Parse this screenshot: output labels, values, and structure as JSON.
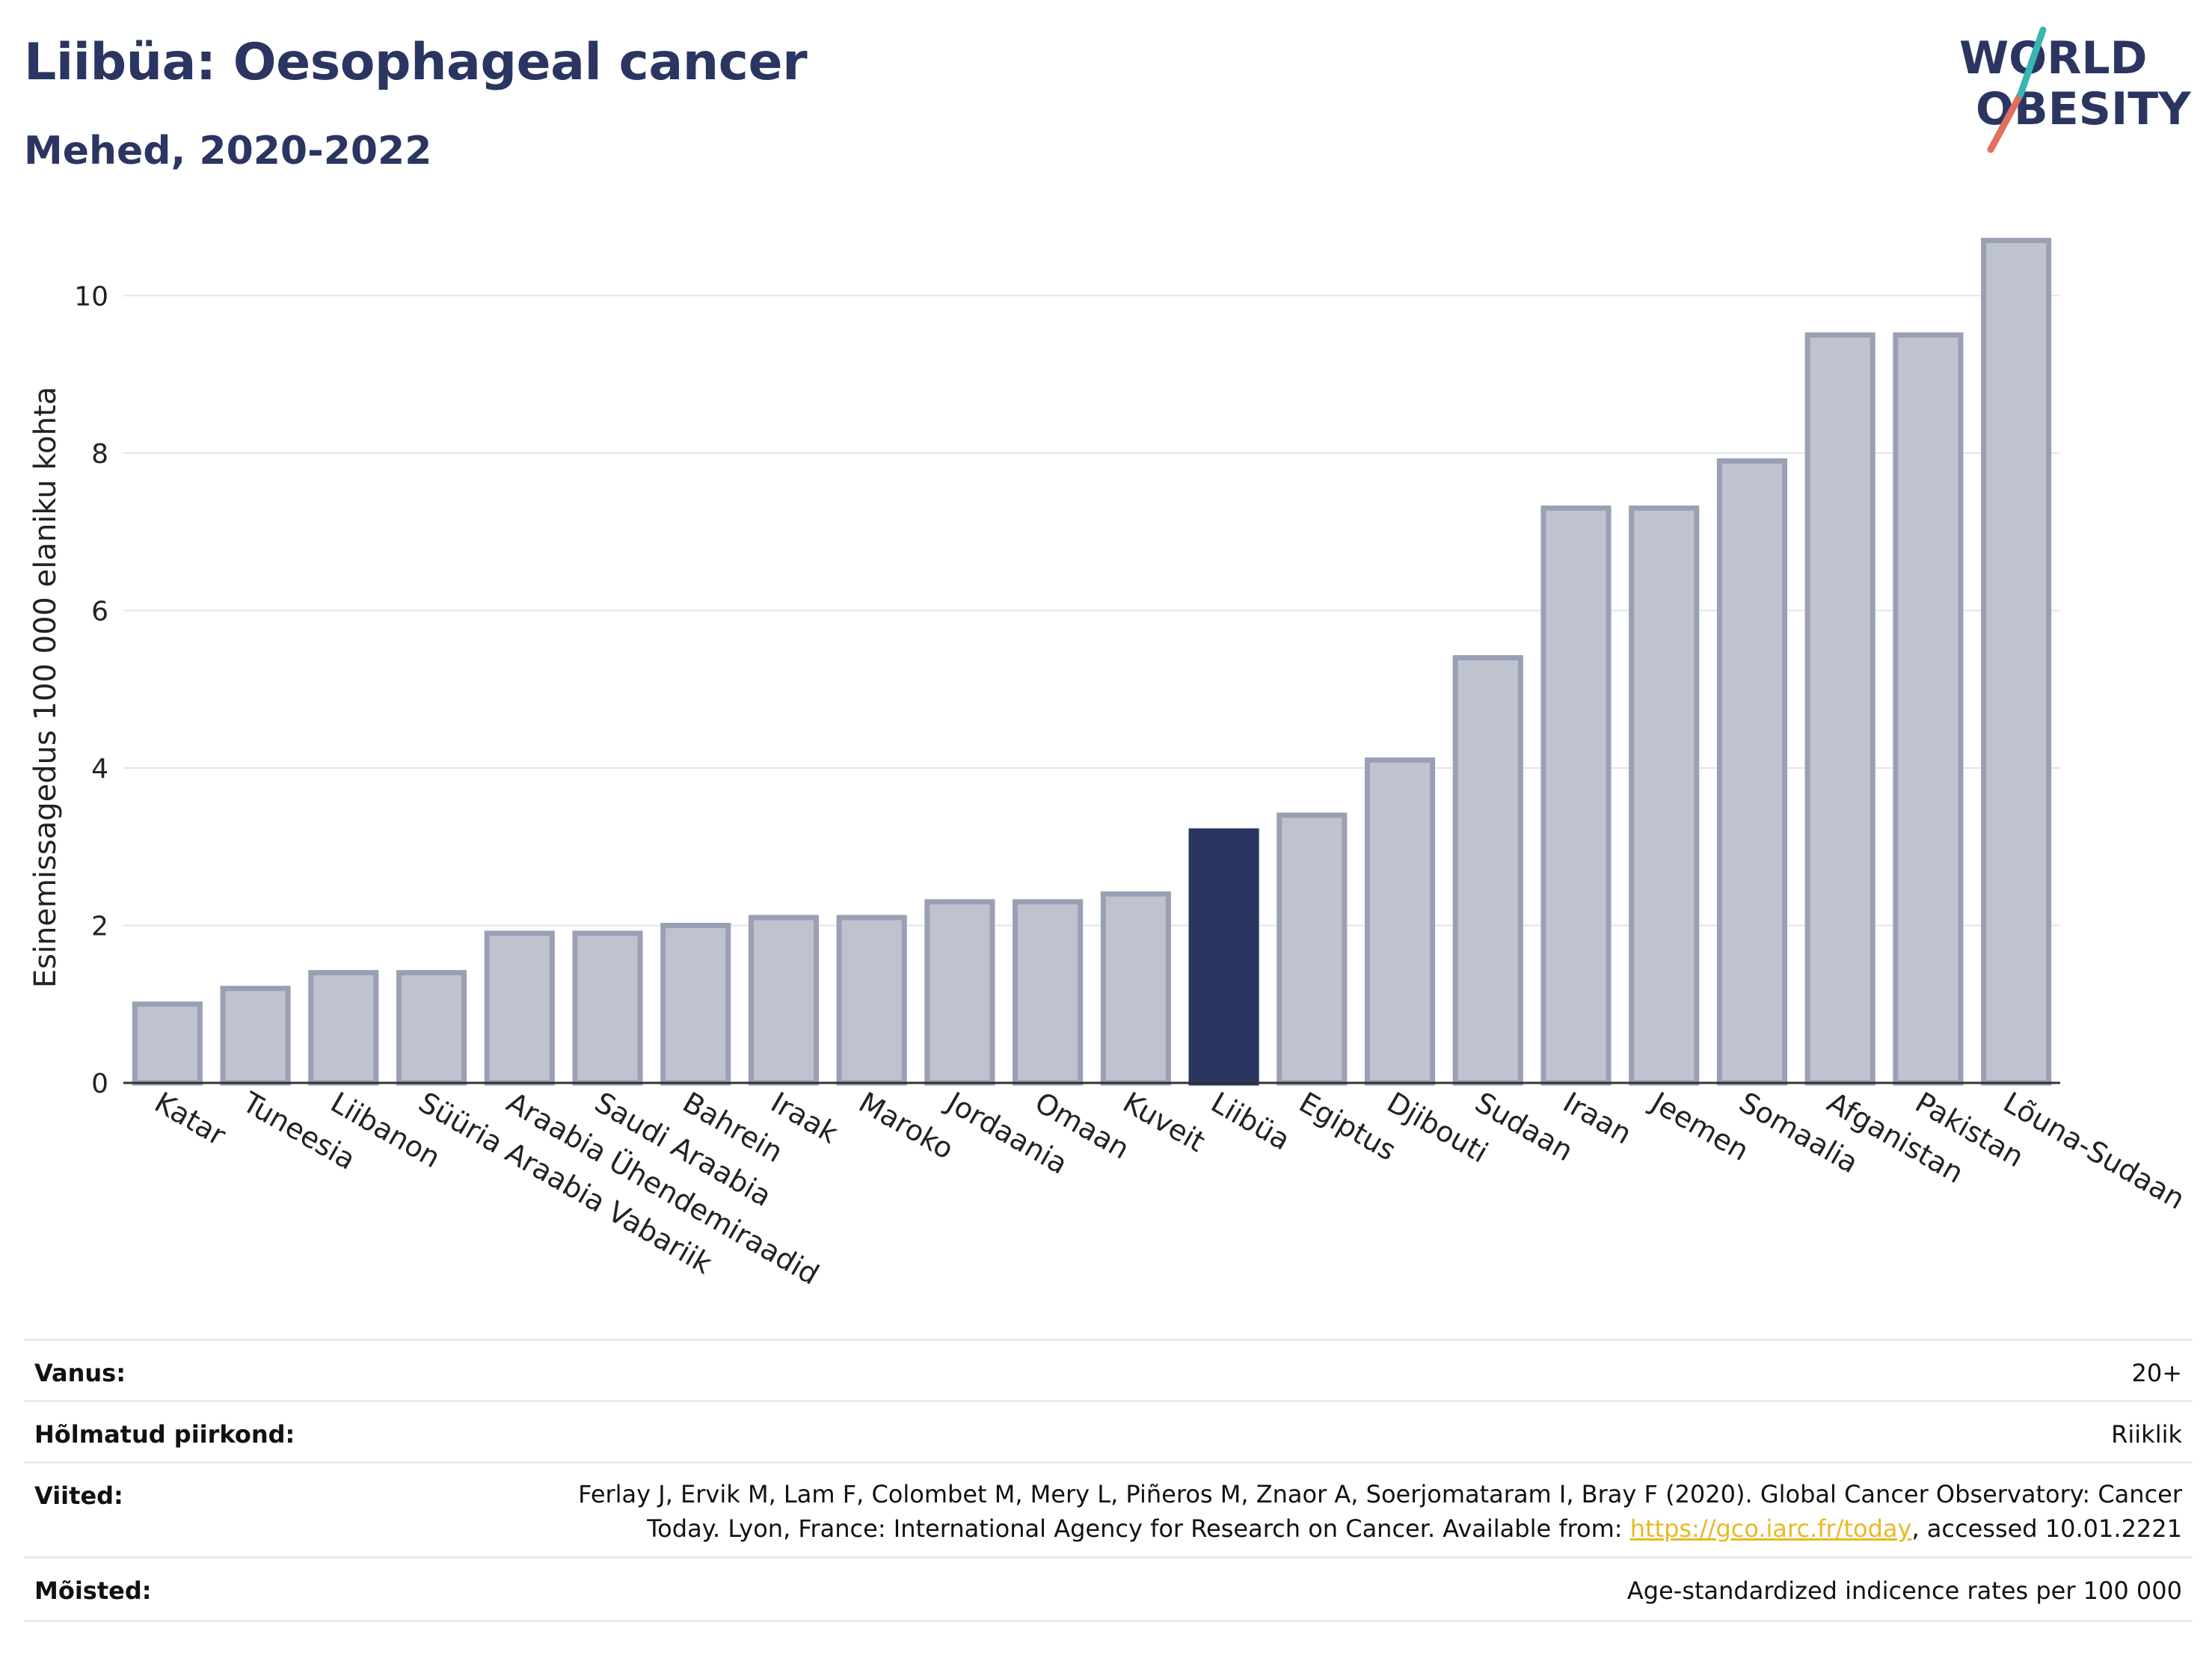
{
  "header": {
    "title": "Liibüa: Oesophageal cancer",
    "subtitle": "Mehed, 2020-2022"
  },
  "logo": {
    "line1": "WORLD",
    "line2": "OBESITY"
  },
  "colors": {
    "bar": "#bfc3cf",
    "bar_border": "#9aa0b4",
    "highlight": "#2b3561",
    "title": "#2b3561"
  },
  "chart_data": {
    "type": "bar",
    "title": "Liibüa: Oesophageal cancer",
    "subtitle": "Mehed, 2020-2022",
    "ylabel": "Esinemissagedus 100 000 elaniku kohta",
    "xlabel": "",
    "ylim": [
      0,
      11
    ],
    "yticks": [
      0,
      2,
      4,
      6,
      8,
      10
    ],
    "grid": true,
    "highlight": "Liibüa",
    "categories": [
      "Katar",
      "Tuneesia",
      "Liibanon",
      "Süüria Araabia Vabariik",
      "Araabia Ühendemiraadid",
      "Saudi Araabia",
      "Bahrein",
      "Iraak",
      "Maroko",
      "Jordaania",
      "Omaan",
      "Kuveit",
      "Liibüa",
      "Egiptus",
      "Djibouti",
      "Sudaan",
      "Iraan",
      "Jeemen",
      "Somaalia",
      "Afganistan",
      "Pakistan",
      "Lõuna-Sudaan"
    ],
    "values": [
      1.0,
      1.2,
      1.4,
      1.4,
      1.9,
      1.9,
      2.0,
      2.1,
      2.1,
      2.3,
      2.3,
      2.4,
      3.2,
      3.4,
      4.1,
      5.4,
      7.3,
      7.3,
      7.9,
      9.5,
      9.5,
      10.7
    ]
  },
  "meta": {
    "age_label": "Vanus:",
    "age_value": "20+",
    "region_label": "Hõlmatud piirkond:",
    "region_value": "Riiklik",
    "refs_label": "Viited:",
    "refs_line1": "Ferlay J, Ervik M, Lam F, Colombet M, Mery L, Piñeros M, Znaor A, Soerjomataram I, Bray F (2020). Global Cancer Observatory: Cancer",
    "refs_line2_pre": "Today. Lyon, France: International Agency for Research on Cancer. Available from: ",
    "refs_link": "https://gco.iarc.fr/today",
    "refs_line2_post": ", accessed 10.01.2221",
    "def_label": "Mõisted:",
    "def_value": "Age-standardized indicence rates per 100 000"
  }
}
